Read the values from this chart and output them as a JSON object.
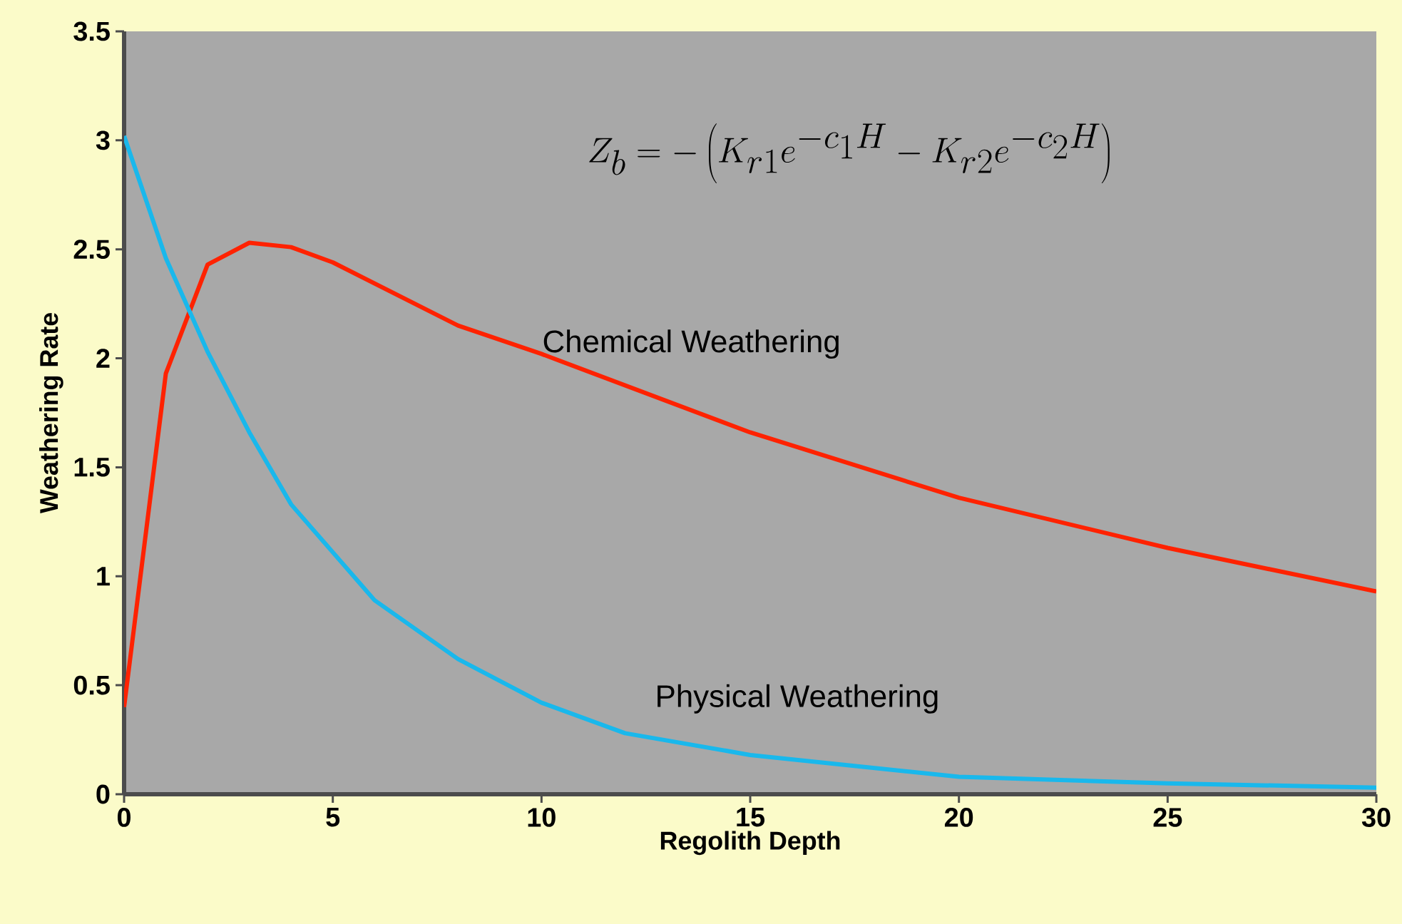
{
  "chart_data": {
    "type": "line",
    "xlabel": "Regolith Depth",
    "ylabel": "Weathering Rate",
    "annotations": [
      "Z_b = -\\left(K_{r1} e^{-c_1 H} - K_{r2} e^{-c_2 H}\\right)"
    ],
    "xlim": [
      0,
      30
    ],
    "ylim": [
      0,
      3.5
    ],
    "xticks": [
      0,
      5,
      10,
      15,
      20,
      25,
      30
    ],
    "yticks": [
      0,
      0.5,
      1,
      1.5,
      2,
      2.5,
      3,
      3.5
    ],
    "grid": false,
    "legend": false,
    "marker": "none",
    "line_style": "solid",
    "series": [
      {
        "name": "Chemical Weathering",
        "color": "#ff2200",
        "x": [
          0,
          1,
          2,
          3,
          4,
          5,
          8,
          10,
          15,
          20,
          25,
          30
        ],
        "values": [
          0.4,
          1.93,
          2.43,
          2.53,
          2.51,
          2.44,
          2.15,
          2.02,
          1.66,
          1.36,
          1.13,
          0.93
        ]
      },
      {
        "name": "Physical Weathering",
        "color": "#19b8ec",
        "x": [
          0,
          1,
          2,
          3,
          4,
          5,
          6,
          8,
          10,
          12,
          15,
          20,
          25,
          30
        ],
        "values": [
          3.02,
          2.46,
          2.03,
          1.66,
          1.33,
          1.11,
          0.89,
          0.62,
          0.42,
          0.28,
          0.18,
          0.08,
          0.05,
          0.03
        ]
      }
    ]
  }
}
